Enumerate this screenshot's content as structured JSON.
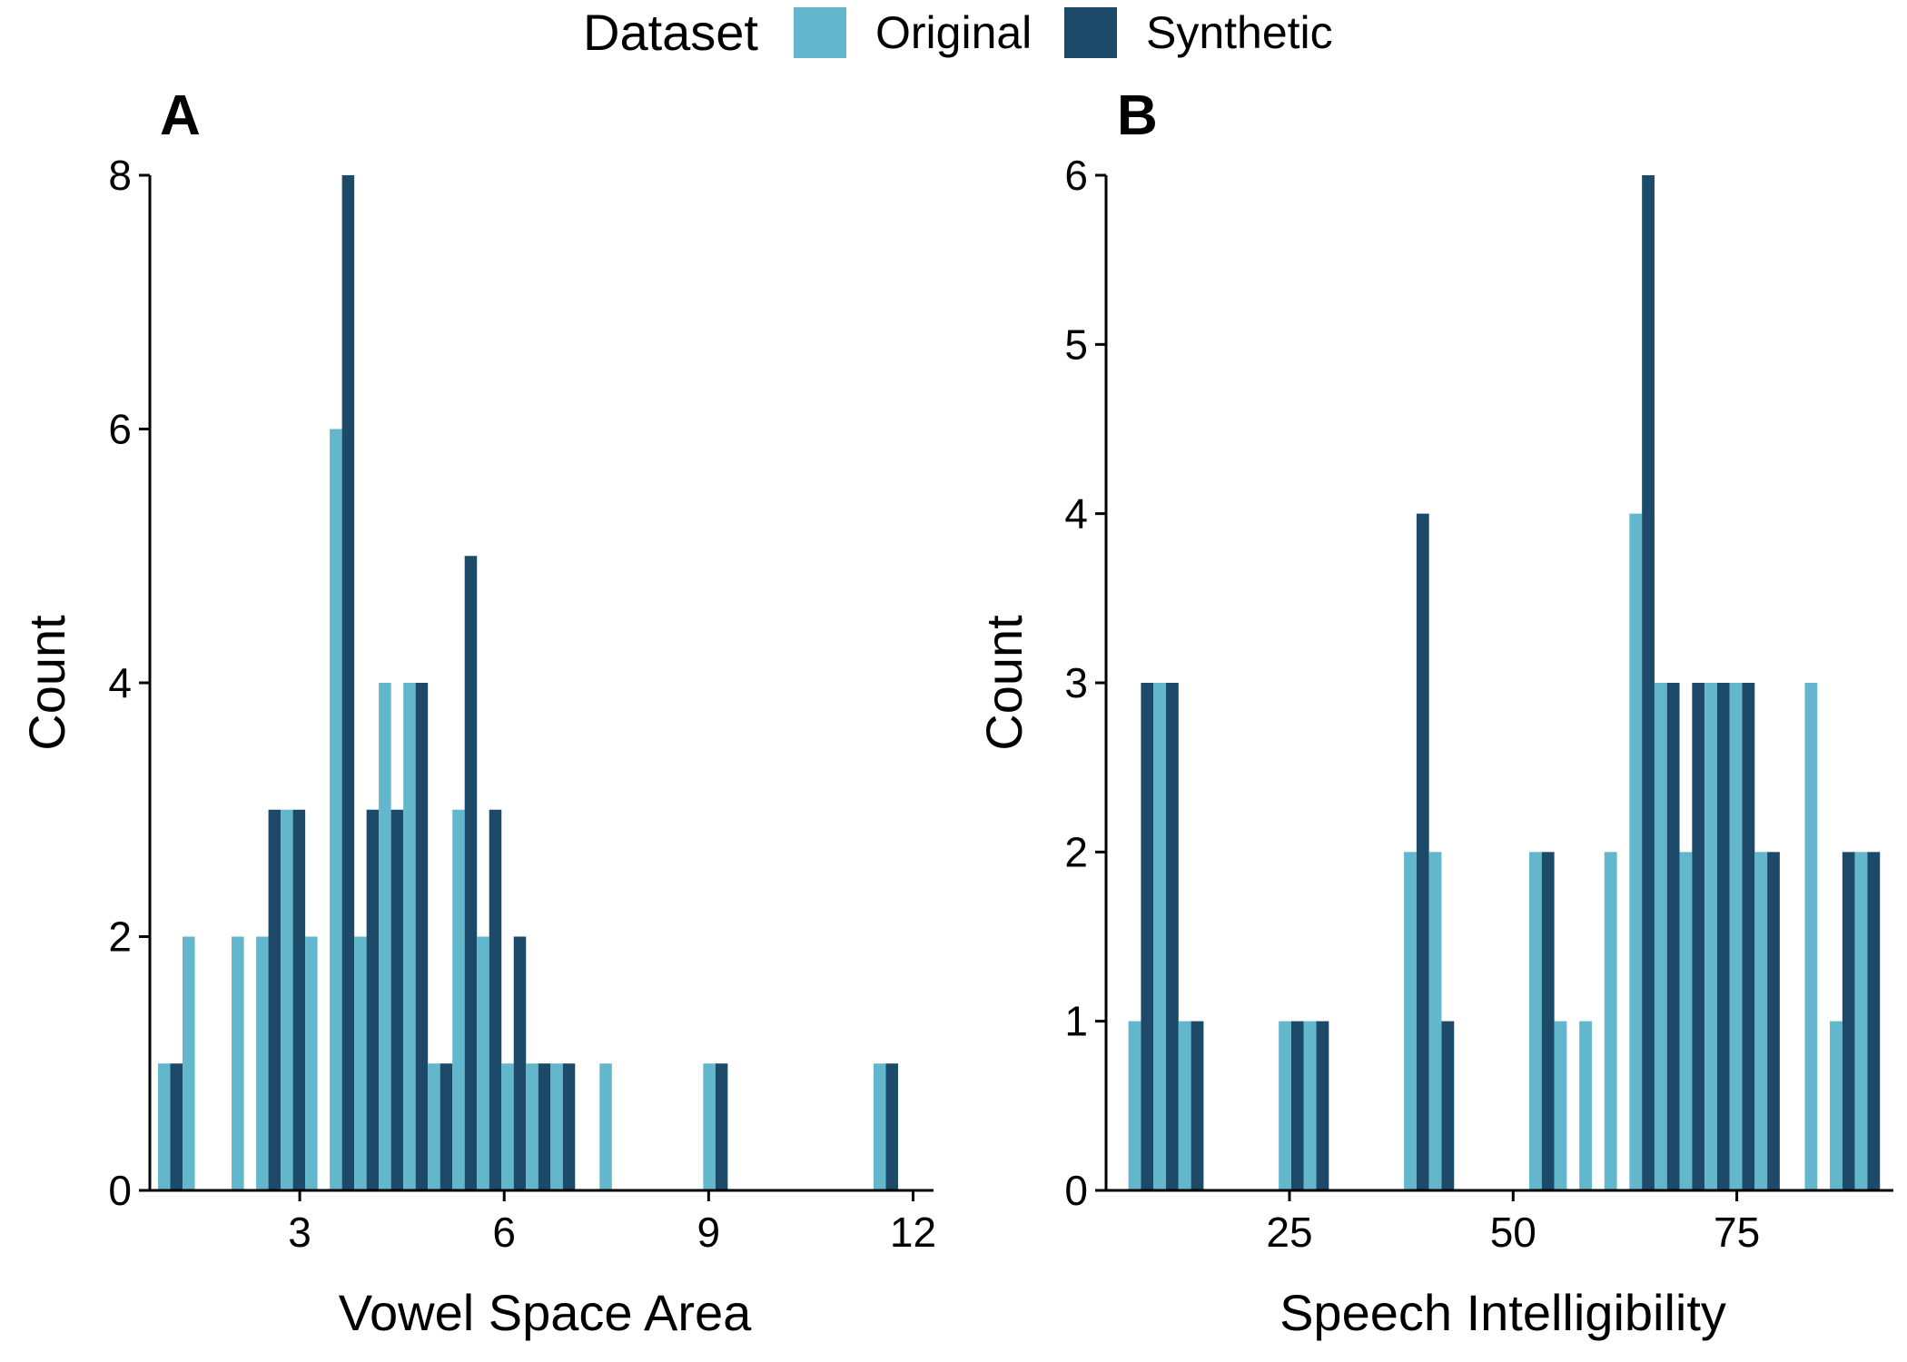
{
  "legend": {
    "title": "Dataset",
    "items": [
      {
        "label": "Original",
        "color": "#63b7cc"
      },
      {
        "label": "Synthetic",
        "color": "#1d4a69"
      }
    ]
  },
  "chart_data": [
    {
      "type": "bar",
      "panel": "A",
      "xlabel": "Vowel Space Area",
      "ylabel": "Count",
      "xlim": [
        0.8,
        12.3
      ],
      "ylim": [
        0,
        8
      ],
      "xticks": [
        3,
        6,
        9,
        12
      ],
      "yticks": [
        0,
        2,
        4,
        6,
        8
      ],
      "bin_width": 0.36,
      "bins": [
        {
          "x": 1.1,
          "original": 1,
          "synthetic": 1
        },
        {
          "x": 1.46,
          "original": 2,
          "synthetic": 0
        },
        {
          "x": 2.18,
          "original": 2,
          "synthetic": 0
        },
        {
          "x": 2.54,
          "original": 2,
          "synthetic": 3
        },
        {
          "x": 2.9,
          "original": 3,
          "synthetic": 3
        },
        {
          "x": 3.26,
          "original": 2,
          "synthetic": 0
        },
        {
          "x": 3.62,
          "original": 6,
          "synthetic": 8
        },
        {
          "x": 3.98,
          "original": 2,
          "synthetic": 3
        },
        {
          "x": 4.34,
          "original": 4,
          "synthetic": 3
        },
        {
          "x": 4.7,
          "original": 4,
          "synthetic": 4
        },
        {
          "x": 5.06,
          "original": 1,
          "synthetic": 1
        },
        {
          "x": 5.42,
          "original": 3,
          "synthetic": 5
        },
        {
          "x": 5.78,
          "original": 2,
          "synthetic": 3
        },
        {
          "x": 6.14,
          "original": 1,
          "synthetic": 2
        },
        {
          "x": 6.5,
          "original": 1,
          "synthetic": 1
        },
        {
          "x": 6.86,
          "original": 1,
          "synthetic": 1
        },
        {
          "x": 7.58,
          "original": 1,
          "synthetic": 0
        },
        {
          "x": 9.1,
          "original": 1,
          "synthetic": 1
        },
        {
          "x": 11.6,
          "original": 1,
          "synthetic": 1
        }
      ]
    },
    {
      "type": "bar",
      "panel": "B",
      "xlabel": "Speech Intelligibility",
      "ylabel": "Count",
      "xlim": [
        4.5,
        92.5
      ],
      "ylim": [
        0,
        6
      ],
      "xticks": [
        25,
        50,
        75
      ],
      "yticks": [
        0,
        1,
        2,
        3,
        4,
        5,
        6
      ],
      "bin_width": 2.8,
      "bins": [
        {
          "x": 8.4,
          "original": 1,
          "synthetic": 3
        },
        {
          "x": 11.2,
          "original": 3,
          "synthetic": 3
        },
        {
          "x": 14.0,
          "original": 1,
          "synthetic": 1
        },
        {
          "x": 25.2,
          "original": 1,
          "synthetic": 1
        },
        {
          "x": 28.0,
          "original": 1,
          "synthetic": 1
        },
        {
          "x": 39.2,
          "original": 2,
          "synthetic": 4
        },
        {
          "x": 42.0,
          "original": 2,
          "synthetic": 1
        },
        {
          "x": 53.2,
          "original": 2,
          "synthetic": 2
        },
        {
          "x": 56.0,
          "original": 1,
          "synthetic": 0
        },
        {
          "x": 58.8,
          "original": 1,
          "synthetic": 0
        },
        {
          "x": 61.6,
          "original": 2,
          "synthetic": 0
        },
        {
          "x": 64.4,
          "original": 4,
          "synthetic": 6
        },
        {
          "x": 67.2,
          "original": 3,
          "synthetic": 3
        },
        {
          "x": 70.0,
          "original": 2,
          "synthetic": 3
        },
        {
          "x": 72.8,
          "original": 3,
          "synthetic": 3
        },
        {
          "x": 75.6,
          "original": 3,
          "synthetic": 3
        },
        {
          "x": 78.4,
          "original": 2,
          "synthetic": 2
        },
        {
          "x": 84.0,
          "original": 3,
          "synthetic": 0
        },
        {
          "x": 86.8,
          "original": 1,
          "synthetic": 2
        },
        {
          "x": 89.6,
          "original": 2,
          "synthetic": 2
        }
      ]
    }
  ]
}
